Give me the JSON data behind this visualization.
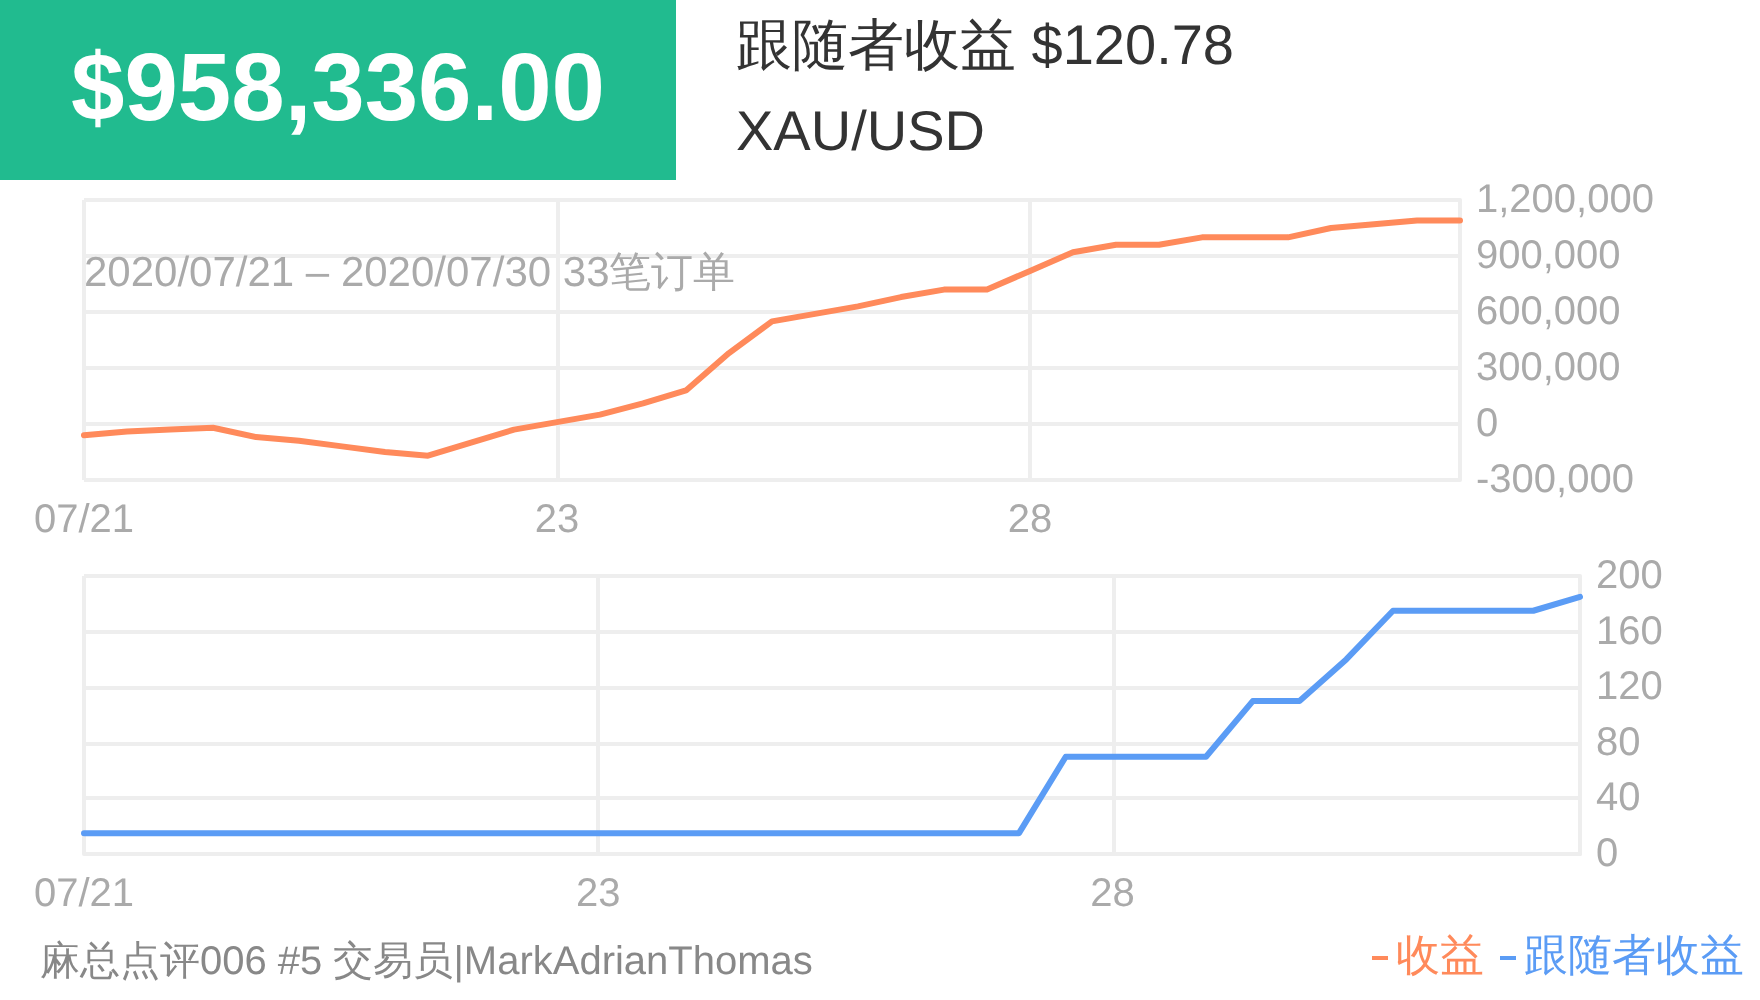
{
  "chart_data": [
    {
      "type": "line",
      "title": "$958,336.00",
      "subtitle": "跟随者收益 $120.78",
      "annotations": [
        "XAU/USD",
        "2020/07/21 – 2020/07/30 33笔订单"
      ],
      "categories": [
        "07/21",
        null,
        null,
        null,
        null,
        null,
        null,
        null,
        null,
        null,
        null,
        "23",
        null,
        null,
        null,
        null,
        null,
        null,
        null,
        null,
        null,
        null,
        "28",
        null,
        null,
        null,
        null,
        null,
        null,
        null,
        null,
        null,
        null
      ],
      "series": [
        {
          "name": "收益",
          "color": "#ff8a5b",
          "values": [
            -60000,
            -40000,
            -30000,
            -20000,
            -70000,
            -90000,
            -120000,
            -150000,
            -170000,
            -100000,
            -30000,
            10000,
            50000,
            110000,
            180000,
            380000,
            550000,
            590000,
            630000,
            680000,
            720000,
            720000,
            820000,
            920000,
            960000,
            960000,
            1000000,
            1000000,
            1000000,
            1050000,
            1070000,
            1090000,
            1090000
          ]
        }
      ],
      "ylim": [
        -300000,
        1200000
      ],
      "yticks": [
        {
          "value": -300000,
          "label": "-300,000"
        },
        0,
        {
          "value": 300000,
          "label": "300,000"
        },
        {
          "value": 600000,
          "label": "600,000"
        },
        {
          "value": 900000,
          "label": "900,000"
        },
        {
          "value": 1200000,
          "label": "1,200,000"
        }
      ],
      "grid": true,
      "legend": "bottom right",
      "marker": "none",
      "line_style": "solid"
    },
    {
      "type": "line",
      "annotations": [
        "麻总点评006 #5 交易员|MarkAdrianThomas"
      ],
      "categories": [
        "07/21",
        null,
        null,
        null,
        null,
        null,
        null,
        null,
        null,
        null,
        null,
        "23",
        null,
        null,
        null,
        null,
        null,
        null,
        null,
        null,
        null,
        null,
        "28",
        null,
        null,
        null,
        null,
        null,
        null,
        null,
        null,
        null,
        null
      ],
      "series": [
        {
          "name": "跟随者收益",
          "color": "#5b9cf5",
          "values": [
            15,
            15,
            15,
            15,
            15,
            15,
            15,
            15,
            15,
            15,
            15,
            15,
            15,
            15,
            15,
            15,
            15,
            15,
            15,
            15,
            15,
            70,
            70,
            70,
            70,
            110,
            110,
            140,
            175,
            175,
            175,
            175,
            185
          ]
        }
      ],
      "ylim": [
        0,
        200
      ],
      "yticks": [
        0,
        40,
        80,
        120,
        160,
        200
      ],
      "grid": true,
      "legend": "bottom right",
      "marker": "none",
      "line_style": "solid"
    }
  ]
}
